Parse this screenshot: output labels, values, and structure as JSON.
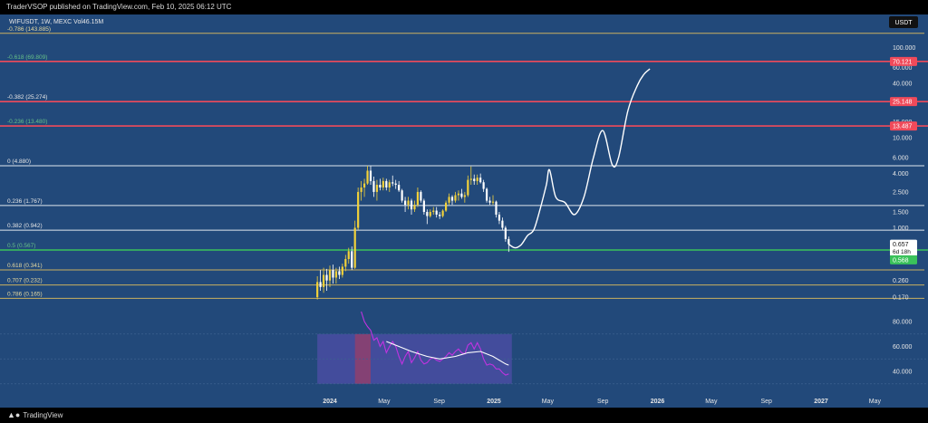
{
  "header": {
    "published": "TraderVSOP published on TradingView.com, Feb 10, 2025 06:12 UTC"
  },
  "footer": {
    "brand": "TradingView",
    "logo_icon": "tradingview-logo-icon"
  },
  "colors": {
    "background": "#22497a",
    "up": "#f2d13a",
    "down": "#ffffff",
    "red_level": "#f04a5a",
    "green_level": "#3ac25a",
    "fib_white": "#e0e6ee",
    "fib_yellow": "#c9b060",
    "fib_green_text": "#66c088",
    "forecast": "#ffffff",
    "rsi": "#c033e0",
    "rsi_ma": "#ffffff"
  },
  "chart_data": [
    {
      "type": "candlestick",
      "symbol_legend": "WIFUSDT, 1W, MEXC  Vol46.15M",
      "currency_label": "USDT",
      "scale": "log",
      "y_axis_ticks": [
        "100.000",
        "60.000",
        "40.000",
        "15.000",
        "10.000",
        "6.000",
        "4.000",
        "2.500",
        "1.500",
        "1.000",
        "0.260",
        "0.170"
      ],
      "y_axis_tick_values": [
        100,
        60,
        40,
        15,
        10,
        6,
        4,
        2.5,
        1.5,
        1,
        0.26,
        0.17
      ],
      "x_axis_ticks": [
        "2024",
        "May",
        "Sep",
        "2025",
        "May",
        "Sep",
        "2026",
        "May",
        "Sep",
        "2027",
        "May"
      ],
      "x_axis_tick_dates": [
        "2024-01-01",
        "2024-05-01",
        "2024-09-01",
        "2025-01-01",
        "2025-05-01",
        "2025-09-01",
        "2026-01-01",
        "2026-05-01",
        "2026-09-01",
        "2027-01-01",
        "2027-05-01"
      ],
      "fib_levels": [
        {
          "label": "-0.786 (143.885)",
          "value": 143.885,
          "kind": "yellow"
        },
        {
          "label": "-0.618 (69.809)",
          "value": 69.809,
          "kind": "green"
        },
        {
          "label": "-0.382 (25.274)",
          "value": 25.274,
          "kind": "plain"
        },
        {
          "label": "-0.236 (13.480)",
          "value": 13.48,
          "kind": "green"
        },
        {
          "label": "0 (4.880)",
          "value": 4.88,
          "kind": "white"
        },
        {
          "label": "0.236 (1.767)",
          "value": 1.767,
          "kind": "white"
        },
        {
          "label": "0.382 (0.942)",
          "value": 0.942,
          "kind": "white"
        },
        {
          "label": "0.5 (0.567)",
          "value": 0.567,
          "kind": "green"
        },
        {
          "label": "0.618 (0.341)",
          "value": 0.341,
          "kind": "yellow"
        },
        {
          "label": "0.707 (0.232)",
          "value": 0.232,
          "kind": "yellow"
        },
        {
          "label": "0.786 (0.165)",
          "value": 0.165,
          "kind": "yellow"
        }
      ],
      "price_tags": [
        {
          "text": "70.121",
          "value": 70.121,
          "kind": "red"
        },
        {
          "text": "25.148",
          "value": 25.148,
          "kind": "red"
        },
        {
          "text": "13.487",
          "value": 13.487,
          "kind": "red"
        },
        {
          "text": "0.657",
          "sub": "6d 18h",
          "value": 0.657,
          "kind": "current"
        },
        {
          "text": "0.568",
          "value": 0.568,
          "kind": "green"
        }
      ],
      "horizontal_lines": [
        {
          "value": 70.121,
          "kind": "red"
        },
        {
          "value": 25.148,
          "kind": "red"
        },
        {
          "value": 13.487,
          "kind": "red"
        },
        {
          "value": 0.567,
          "kind": "green"
        }
      ],
      "candles": [
        {
          "date": "2023-12-04",
          "o": 0.17,
          "h": 0.29,
          "l": 0.16,
          "c": 0.25
        },
        {
          "date": "2023-12-11",
          "o": 0.25,
          "h": 0.34,
          "l": 0.2,
          "c": 0.22
        },
        {
          "date": "2023-12-18",
          "o": 0.22,
          "h": 0.36,
          "l": 0.19,
          "c": 0.3
        },
        {
          "date": "2023-12-25",
          "o": 0.3,
          "h": 0.35,
          "l": 0.2,
          "c": 0.26
        },
        {
          "date": "2024-01-01",
          "o": 0.26,
          "h": 0.38,
          "l": 0.22,
          "c": 0.34
        },
        {
          "date": "2024-01-08",
          "o": 0.34,
          "h": 0.39,
          "l": 0.24,
          "c": 0.28
        },
        {
          "date": "2024-01-15",
          "o": 0.28,
          "h": 0.36,
          "l": 0.24,
          "c": 0.33
        },
        {
          "date": "2024-01-22",
          "o": 0.33,
          "h": 0.37,
          "l": 0.27,
          "c": 0.3
        },
        {
          "date": "2024-01-29",
          "o": 0.3,
          "h": 0.4,
          "l": 0.28,
          "c": 0.37
        },
        {
          "date": "2024-02-05",
          "o": 0.37,
          "h": 0.5,
          "l": 0.33,
          "c": 0.45
        },
        {
          "date": "2024-02-12",
          "o": 0.45,
          "h": 0.6,
          "l": 0.4,
          "c": 0.55
        },
        {
          "date": "2024-02-19",
          "o": 0.55,
          "h": 0.62,
          "l": 0.34,
          "c": 0.36
        },
        {
          "date": "2024-02-26",
          "o": 0.36,
          "h": 1.2,
          "l": 0.35,
          "c": 1.0
        },
        {
          "date": "2024-03-04",
          "o": 1.0,
          "h": 2.8,
          "l": 0.95,
          "c": 2.5
        },
        {
          "date": "2024-03-11",
          "o": 2.5,
          "h": 3.3,
          "l": 2.0,
          "c": 2.8
        },
        {
          "date": "2024-03-18",
          "o": 2.8,
          "h": 3.5,
          "l": 2.2,
          "c": 3.1
        },
        {
          "date": "2024-03-25",
          "o": 3.1,
          "h": 4.9,
          "l": 3.0,
          "c": 4.3
        },
        {
          "date": "2024-04-01",
          "o": 4.3,
          "h": 4.85,
          "l": 3.0,
          "c": 3.3
        },
        {
          "date": "2024-04-08",
          "o": 3.3,
          "h": 3.7,
          "l": 2.2,
          "c": 2.5
        },
        {
          "date": "2024-04-15",
          "o": 2.5,
          "h": 3.4,
          "l": 2.0,
          "c": 3.0
        },
        {
          "date": "2024-04-22",
          "o": 3.0,
          "h": 3.5,
          "l": 2.6,
          "c": 2.8
        },
        {
          "date": "2024-04-29",
          "o": 2.8,
          "h": 3.6,
          "l": 2.6,
          "c": 3.3
        },
        {
          "date": "2024-05-06",
          "o": 3.3,
          "h": 3.5,
          "l": 2.6,
          "c": 2.8
        },
        {
          "date": "2024-05-13",
          "o": 2.8,
          "h": 3.4,
          "l": 2.5,
          "c": 3.2
        },
        {
          "date": "2024-05-20",
          "o": 3.2,
          "h": 3.8,
          "l": 2.9,
          "c": 3.1
        },
        {
          "date": "2024-05-27",
          "o": 3.1,
          "h": 3.4,
          "l": 2.7,
          "c": 3.0
        },
        {
          "date": "2024-06-03",
          "o": 3.0,
          "h": 3.3,
          "l": 2.5,
          "c": 2.6
        },
        {
          "date": "2024-06-10",
          "o": 2.6,
          "h": 2.7,
          "l": 1.9,
          "c": 2.0
        },
        {
          "date": "2024-06-17",
          "o": 2.0,
          "h": 2.2,
          "l": 1.5,
          "c": 1.8
        },
        {
          "date": "2024-06-24",
          "o": 1.8,
          "h": 2.2,
          "l": 1.6,
          "c": 2.0
        },
        {
          "date": "2024-07-01",
          "o": 2.0,
          "h": 2.1,
          "l": 1.4,
          "c": 1.6
        },
        {
          "date": "2024-07-08",
          "o": 1.6,
          "h": 2.0,
          "l": 1.5,
          "c": 1.8
        },
        {
          "date": "2024-07-15",
          "o": 1.8,
          "h": 2.8,
          "l": 1.7,
          "c": 2.5
        },
        {
          "date": "2024-07-22",
          "o": 2.5,
          "h": 2.6,
          "l": 1.9,
          "c": 2.0
        },
        {
          "date": "2024-07-29",
          "o": 2.0,
          "h": 2.1,
          "l": 1.4,
          "c": 1.5
        },
        {
          "date": "2024-08-05",
          "o": 1.5,
          "h": 1.6,
          "l": 1.1,
          "c": 1.35
        },
        {
          "date": "2024-08-12",
          "o": 1.35,
          "h": 1.6,
          "l": 1.3,
          "c": 1.5
        },
        {
          "date": "2024-08-19",
          "o": 1.5,
          "h": 1.7,
          "l": 1.4,
          "c": 1.55
        },
        {
          "date": "2024-08-26",
          "o": 1.55,
          "h": 1.7,
          "l": 1.3,
          "c": 1.4
        },
        {
          "date": "2024-09-02",
          "o": 1.4,
          "h": 1.5,
          "l": 1.25,
          "c": 1.35
        },
        {
          "date": "2024-09-09",
          "o": 1.35,
          "h": 1.6,
          "l": 1.3,
          "c": 1.55
        },
        {
          "date": "2024-09-16",
          "o": 1.55,
          "h": 2.0,
          "l": 1.5,
          "c": 1.9
        },
        {
          "date": "2024-09-23",
          "o": 1.9,
          "h": 2.4,
          "l": 1.8,
          "c": 2.2
        },
        {
          "date": "2024-09-30",
          "o": 2.2,
          "h": 2.3,
          "l": 1.8,
          "c": 2.0
        },
        {
          "date": "2024-10-07",
          "o": 2.0,
          "h": 2.5,
          "l": 1.9,
          "c": 2.3
        },
        {
          "date": "2024-10-14",
          "o": 2.3,
          "h": 2.6,
          "l": 2.0,
          "c": 2.4
        },
        {
          "date": "2024-10-21",
          "o": 2.4,
          "h": 2.7,
          "l": 2.1,
          "c": 2.2
        },
        {
          "date": "2024-10-28",
          "o": 2.2,
          "h": 2.5,
          "l": 1.9,
          "c": 2.3
        },
        {
          "date": "2024-11-04",
          "o": 2.3,
          "h": 3.8,
          "l": 2.2,
          "c": 3.4
        },
        {
          "date": "2024-11-11",
          "o": 3.4,
          "h": 4.8,
          "l": 3.0,
          "c": 3.5
        },
        {
          "date": "2024-11-18",
          "o": 3.5,
          "h": 3.9,
          "l": 3.0,
          "c": 3.3
        },
        {
          "date": "2024-11-25",
          "o": 3.3,
          "h": 3.9,
          "l": 3.0,
          "c": 3.6
        },
        {
          "date": "2024-12-02",
          "o": 3.6,
          "h": 4.0,
          "l": 3.1,
          "c": 3.2
        },
        {
          "date": "2024-12-09",
          "o": 3.2,
          "h": 3.4,
          "l": 2.5,
          "c": 2.7
        },
        {
          "date": "2024-12-16",
          "o": 2.7,
          "h": 2.8,
          "l": 1.9,
          "c": 2.0
        },
        {
          "date": "2024-12-23",
          "o": 2.0,
          "h": 2.2,
          "l": 1.8,
          "c": 1.9
        },
        {
          "date": "2024-12-30",
          "o": 1.9,
          "h": 2.3,
          "l": 1.8,
          "c": 1.95
        },
        {
          "date": "2025-01-06",
          "o": 1.95,
          "h": 2.0,
          "l": 1.3,
          "c": 1.4
        },
        {
          "date": "2025-01-13",
          "o": 1.4,
          "h": 1.5,
          "l": 1.1,
          "c": 1.2
        },
        {
          "date": "2025-01-20",
          "o": 1.2,
          "h": 1.3,
          "l": 0.95,
          "c": 1.0
        },
        {
          "date": "2025-01-27",
          "o": 1.0,
          "h": 1.05,
          "l": 0.7,
          "c": 0.75
        },
        {
          "date": "2025-02-03",
          "o": 0.75,
          "h": 0.8,
          "l": 0.54,
          "c": 0.657
        }
      ],
      "forecast_path": [
        {
          "date": "2025-02-03",
          "value": 0.657
        },
        {
          "date": "2025-02-17",
          "value": 0.6
        },
        {
          "date": "2025-03-03",
          "value": 0.65
        },
        {
          "date": "2025-03-17",
          "value": 0.82
        },
        {
          "date": "2025-03-31",
          "value": 0.95
        },
        {
          "date": "2025-04-14",
          "value": 1.6
        },
        {
          "date": "2025-04-28",
          "value": 3.0
        },
        {
          "date": "2025-05-05",
          "value": 4.4
        },
        {
          "date": "2025-05-19",
          "value": 2.2
        },
        {
          "date": "2025-06-09",
          "value": 1.9
        },
        {
          "date": "2025-06-30",
          "value": 1.4
        },
        {
          "date": "2025-07-21",
          "value": 2.2
        },
        {
          "date": "2025-08-11",
          "value": 6.0
        },
        {
          "date": "2025-09-01",
          "value": 12.0
        },
        {
          "date": "2025-09-22",
          "value": 5.0
        },
        {
          "date": "2025-10-06",
          "value": 6.0
        },
        {
          "date": "2025-10-27",
          "value": 20.0
        },
        {
          "date": "2025-11-17",
          "value": 38.0
        },
        {
          "date": "2025-12-01",
          "value": 50.0
        },
        {
          "date": "2025-12-15",
          "value": 58.0
        }
      ]
    },
    {
      "type": "line",
      "scale": "linear",
      "y_axis_ticks": [
        "80.000",
        "60.000",
        "40.000"
      ],
      "y_axis_tick_values": [
        80,
        60,
        40
      ],
      "band_lines": [
        70,
        50,
        30
      ],
      "ylim": [
        28,
        90
      ],
      "series": [
        {
          "kind": "rsi",
          "points": [
            {
              "date": "2024-03-11",
              "value": 88
            },
            {
              "date": "2024-03-18",
              "value": 80
            },
            {
              "date": "2024-03-25",
              "value": 76
            },
            {
              "date": "2024-04-01",
              "value": 73
            },
            {
              "date": "2024-04-08",
              "value": 65
            },
            {
              "date": "2024-04-15",
              "value": 67
            },
            {
              "date": "2024-04-22",
              "value": 60
            },
            {
              "date": "2024-04-29",
              "value": 64
            },
            {
              "date": "2024-05-06",
              "value": 55
            },
            {
              "date": "2024-05-13",
              "value": 60
            },
            {
              "date": "2024-05-20",
              "value": 64
            },
            {
              "date": "2024-05-27",
              "value": 60
            },
            {
              "date": "2024-06-03",
              "value": 52
            },
            {
              "date": "2024-06-10",
              "value": 46
            },
            {
              "date": "2024-06-17",
              "value": 52
            },
            {
              "date": "2024-06-24",
              "value": 56
            },
            {
              "date": "2024-07-01",
              "value": 47
            },
            {
              "date": "2024-07-08",
              "value": 51
            },
            {
              "date": "2024-07-15",
              "value": 56
            },
            {
              "date": "2024-07-22",
              "value": 49
            },
            {
              "date": "2024-07-29",
              "value": 46
            },
            {
              "date": "2024-08-05",
              "value": 47
            },
            {
              "date": "2024-08-12",
              "value": 50
            },
            {
              "date": "2024-08-19",
              "value": 51
            },
            {
              "date": "2024-08-26",
              "value": 49
            },
            {
              "date": "2024-09-02",
              "value": 48
            },
            {
              "date": "2024-09-09",
              "value": 50
            },
            {
              "date": "2024-09-16",
              "value": 52
            },
            {
              "date": "2024-09-23",
              "value": 55
            },
            {
              "date": "2024-09-30",
              "value": 53
            },
            {
              "date": "2024-10-07",
              "value": 56
            },
            {
              "date": "2024-10-14",
              "value": 58
            },
            {
              "date": "2024-10-21",
              "value": 55
            },
            {
              "date": "2024-10-28",
              "value": 54
            },
            {
              "date": "2024-11-04",
              "value": 61
            },
            {
              "date": "2024-11-11",
              "value": 63
            },
            {
              "date": "2024-11-18",
              "value": 58
            },
            {
              "date": "2024-11-25",
              "value": 63
            },
            {
              "date": "2024-12-02",
              "value": 58
            },
            {
              "date": "2024-12-09",
              "value": 50
            },
            {
              "date": "2024-12-16",
              "value": 45
            },
            {
              "date": "2024-12-23",
              "value": 46
            },
            {
              "date": "2024-12-30",
              "value": 45
            },
            {
              "date": "2025-01-06",
              "value": 42
            },
            {
              "date": "2025-01-13",
              "value": 42
            },
            {
              "date": "2025-01-20",
              "value": 39
            },
            {
              "date": "2025-01-27",
              "value": 37
            },
            {
              "date": "2025-02-03",
              "value": 38
            }
          ]
        },
        {
          "kind": "rsi_ma",
          "points": [
            {
              "date": "2024-05-06",
              "value": 64
            },
            {
              "date": "2024-06-03",
              "value": 60
            },
            {
              "date": "2024-07-01",
              "value": 56
            },
            {
              "date": "2024-08-05",
              "value": 52
            },
            {
              "date": "2024-09-02",
              "value": 50
            },
            {
              "date": "2024-10-07",
              "value": 52
            },
            {
              "date": "2024-11-04",
              "value": 55
            },
            {
              "date": "2024-12-02",
              "value": 56
            },
            {
              "date": "2024-12-30",
              "value": 52
            },
            {
              "date": "2025-01-27",
              "value": 46
            },
            {
              "date": "2025-02-03",
              "value": 45
            }
          ]
        }
      ],
      "shaded_region": {
        "from": "2023-12-04",
        "to": "2025-02-10"
      },
      "overbought_region": {
        "from": "2024-02-26",
        "to": "2024-04-01"
      }
    }
  ]
}
